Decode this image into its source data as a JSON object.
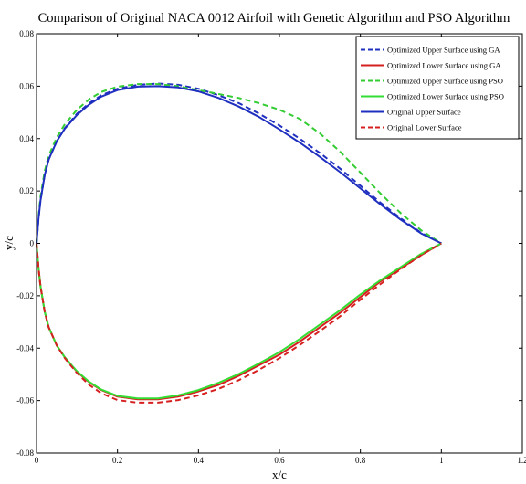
{
  "chart_data": {
    "type": "line",
    "title": "Comparison of Original NACA 0012 Airfoil with Genetic Algorithm and PSO Algorithm",
    "xlabel": "x/c",
    "ylabel": "y/c",
    "xlim": [
      0,
      1.2
    ],
    "ylim": [
      -0.08,
      0.08
    ],
    "x_ticks": [
      "0",
      "0.2",
      "0.4",
      "0.6",
      "0.8",
      "1",
      "1.2"
    ],
    "y_ticks": [
      "0.08",
      "0.06",
      "0.04",
      "0.02",
      "0",
      "-0.02",
      "-0.04",
      "-0.06",
      "-0.08"
    ],
    "grid": false,
    "legend_position": "top-right",
    "series": [
      {
        "name": "Optimized Upper Surface using GA",
        "color": "#1f2fbf",
        "dash": "dashed",
        "x": [
          0,
          0.005,
          0.01,
          0.02,
          0.03,
          0.05,
          0.07,
          0.1,
          0.13,
          0.16,
          0.2,
          0.25,
          0.3,
          0.35,
          0.4,
          0.45,
          0.5,
          0.55,
          0.6,
          0.65,
          0.7,
          0.75,
          0.8,
          0.85,
          0.9,
          0.95,
          1.0
        ],
        "y": [
          0,
          0.0095,
          0.0165,
          0.026,
          0.032,
          0.039,
          0.044,
          0.0495,
          0.0535,
          0.0565,
          0.059,
          0.0605,
          0.061,
          0.0605,
          0.059,
          0.0565,
          0.0535,
          0.0495,
          0.045,
          0.04,
          0.0345,
          0.0285,
          0.022,
          0.0155,
          0.0095,
          0.004,
          0
        ]
      },
      {
        "name": "Optimized Lower Surface using GA",
        "color": "#d62020",
        "dash": "solid",
        "x": [
          0,
          0.005,
          0.01,
          0.02,
          0.03,
          0.05,
          0.07,
          0.1,
          0.13,
          0.16,
          0.2,
          0.25,
          0.3,
          0.35,
          0.4,
          0.45,
          0.5,
          0.55,
          0.6,
          0.65,
          0.7,
          0.75,
          0.8,
          0.85,
          0.9,
          0.95,
          1.0
        ],
        "y": [
          0,
          -0.0095,
          -0.0165,
          -0.026,
          -0.032,
          -0.039,
          -0.0435,
          -0.049,
          -0.053,
          -0.056,
          -0.0585,
          -0.0595,
          -0.0595,
          -0.0585,
          -0.0565,
          -0.054,
          -0.0505,
          -0.0465,
          -0.0425,
          -0.0375,
          -0.032,
          -0.0265,
          -0.0205,
          -0.0145,
          -0.0095,
          -0.0045,
          0
        ]
      },
      {
        "name": "Optimized Upper Surface using PSO",
        "color": "#33cc33",
        "dash": "dashed",
        "x": [
          0,
          0.005,
          0.01,
          0.02,
          0.03,
          0.05,
          0.07,
          0.1,
          0.13,
          0.16,
          0.2,
          0.25,
          0.3,
          0.35,
          0.4,
          0.45,
          0.5,
          0.55,
          0.6,
          0.65,
          0.7,
          0.75,
          0.8,
          0.85,
          0.9,
          0.95,
          1.0
        ],
        "y": [
          0,
          0.0105,
          0.018,
          0.0275,
          0.0335,
          0.0405,
          0.0455,
          0.051,
          0.055,
          0.0578,
          0.0598,
          0.0608,
          0.0608,
          0.06,
          0.0585,
          0.057,
          0.0555,
          0.0535,
          0.051,
          0.0475,
          0.042,
          0.035,
          0.027,
          0.019,
          0.0115,
          0.005,
          0
        ]
      },
      {
        "name": "Optimized Lower Surface using PSO",
        "color": "#33dd33",
        "dash": "solid",
        "x": [
          0,
          0.005,
          0.01,
          0.02,
          0.03,
          0.05,
          0.07,
          0.1,
          0.13,
          0.16,
          0.2,
          0.25,
          0.3,
          0.35,
          0.4,
          0.45,
          0.5,
          0.55,
          0.6,
          0.65,
          0.7,
          0.75,
          0.8,
          0.85,
          0.9,
          0.95,
          1.0
        ],
        "y": [
          0,
          -0.0095,
          -0.0165,
          -0.026,
          -0.032,
          -0.039,
          -0.0435,
          -0.0488,
          -0.0528,
          -0.0558,
          -0.0582,
          -0.0592,
          -0.0592,
          -0.058,
          -0.056,
          -0.0532,
          -0.0498,
          -0.0458,
          -0.0415,
          -0.0365,
          -0.031,
          -0.0255,
          -0.0195,
          -0.014,
          -0.009,
          -0.004,
          0
        ]
      },
      {
        "name": "Original Upper Surface",
        "color": "#1f2fbf",
        "dash": "solid",
        "x": [
          0,
          0.005,
          0.01,
          0.02,
          0.03,
          0.05,
          0.07,
          0.1,
          0.13,
          0.16,
          0.2,
          0.25,
          0.3,
          0.35,
          0.4,
          0.45,
          0.5,
          0.55,
          0.6,
          0.65,
          0.7,
          0.75,
          0.8,
          0.85,
          0.9,
          0.95,
          1.0
        ],
        "y": [
          0,
          0.0095,
          0.0165,
          0.026,
          0.032,
          0.039,
          0.0438,
          0.049,
          0.053,
          0.056,
          0.0585,
          0.0598,
          0.06,
          0.0595,
          0.058,
          0.0555,
          0.0522,
          0.0482,
          0.0435,
          0.0385,
          0.033,
          0.0272,
          0.021,
          0.0148,
          0.009,
          0.0038,
          0
        ]
      },
      {
        "name": "Original Lower Surface",
        "color": "#d62020",
        "dash": "dashed",
        "x": [
          0,
          0.005,
          0.01,
          0.02,
          0.03,
          0.05,
          0.07,
          0.1,
          0.13,
          0.16,
          0.2,
          0.25,
          0.3,
          0.35,
          0.4,
          0.45,
          0.5,
          0.55,
          0.6,
          0.65,
          0.7,
          0.75,
          0.8,
          0.85,
          0.9,
          0.95,
          1.0
        ],
        "y": [
          0,
          -0.0095,
          -0.0165,
          -0.026,
          -0.032,
          -0.039,
          -0.0438,
          -0.0495,
          -0.054,
          -0.0572,
          -0.0598,
          -0.0608,
          -0.0608,
          -0.0598,
          -0.058,
          -0.0555,
          -0.0522,
          -0.0482,
          -0.0438,
          -0.0388,
          -0.0335,
          -0.0278,
          -0.0215,
          -0.0155,
          -0.0098,
          -0.0045,
          0
        ]
      }
    ]
  }
}
